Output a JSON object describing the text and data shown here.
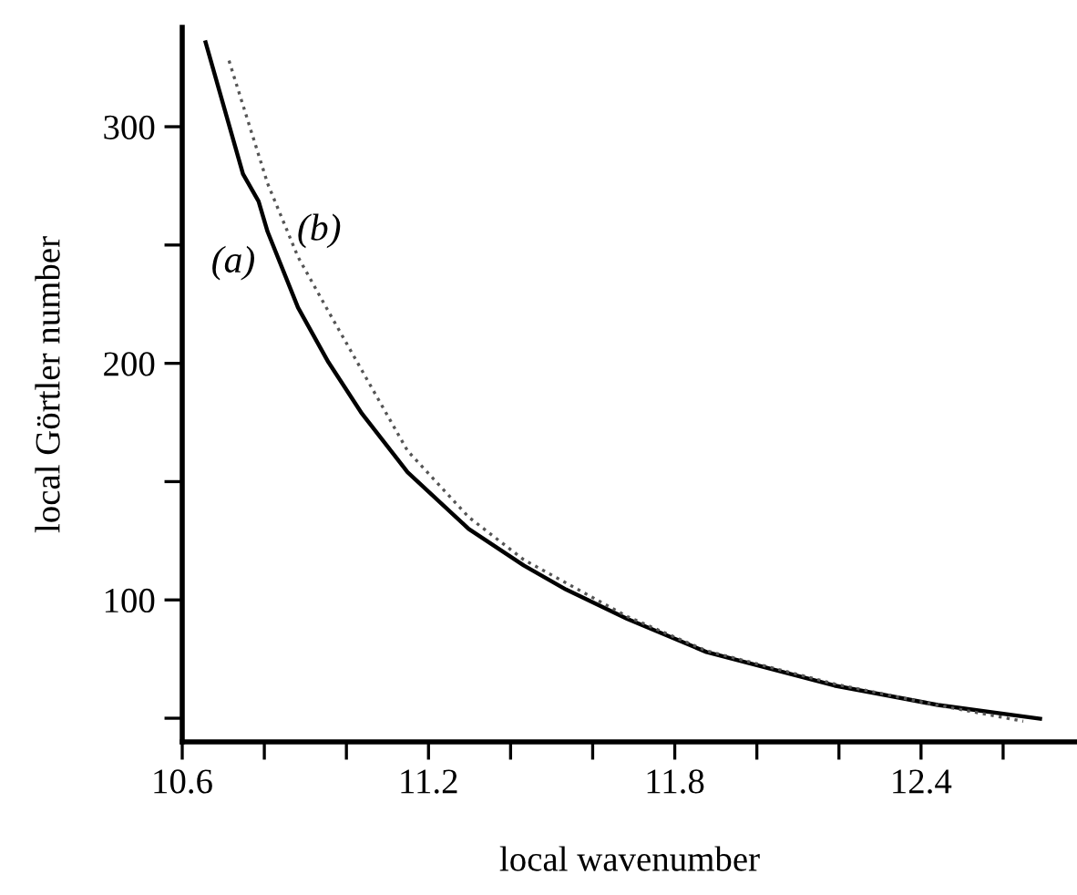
{
  "chart_data": {
    "type": "line",
    "xlabel": "local wavenumber",
    "ylabel": "local Görtler number",
    "xlim": [
      10.6,
      12.78
    ],
    "ylim": [
      40,
      342
    ],
    "xticks": [
      10.6,
      {
        "value": 10.8,
        "label": null
      },
      {
        "value": 11.0,
        "label": null
      },
      11.2,
      {
        "value": 11.4,
        "label": null
      },
      {
        "value": 11.6,
        "label": null
      },
      11.8,
      {
        "value": 12.0,
        "label": null
      },
      {
        "value": 12.2,
        "label": null
      },
      12.4,
      {
        "value": 12.6,
        "label": null
      }
    ],
    "yticks": [
      {
        "value": 50,
        "label": null
      },
      100,
      {
        "value": 150,
        "label": null
      },
      200,
      {
        "value": 250,
        "label": null
      },
      300
    ],
    "grid": false,
    "legend": false,
    "series": [
      {
        "color": "#000000",
        "line_style": "solid",
        "x": [
          10.657,
          10.748,
          10.786,
          10.808,
          10.882,
          10.956,
          11.038,
          11.149,
          11.298,
          11.432,
          11.535,
          11.684,
          11.877,
          12.189,
          12.441,
          12.69
        ],
        "values": [
          335.6,
          280,
          268.5,
          255.6,
          223.6,
          200.5,
          178.7,
          154,
          130,
          114.6,
          104.4,
          92,
          78,
          63.8,
          55.6,
          49.8
        ]
      },
      {
        "color": "#555555",
        "line_style": "dotted",
        "x": [
          10.714,
          10.808,
          10.882,
          10.956,
          11.149,
          11.298,
          11.432,
          11.684,
          11.877,
          12.189,
          12.441,
          12.649
        ],
        "values": [
          327.9,
          276,
          245,
          222,
          163,
          135,
          117,
          93,
          78.5,
          64.5,
          55.5,
          48.7
        ]
      }
    ],
    "annotations": [
      "(a)",
      "(b)"
    ]
  }
}
